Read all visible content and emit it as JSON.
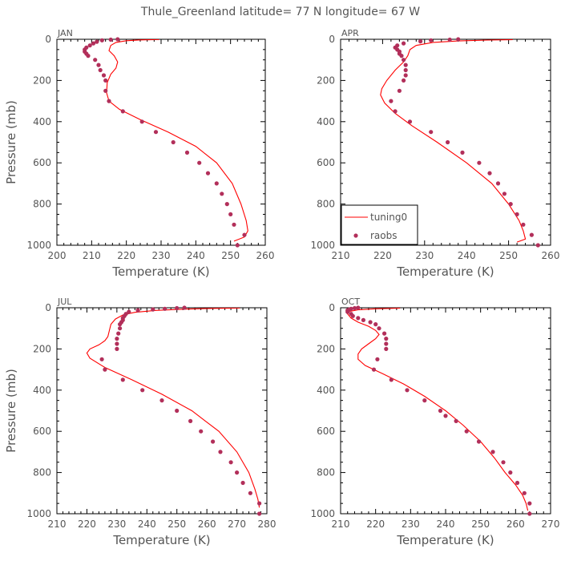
{
  "figure_title": "Thule_Greenland  latitude= 77 N longitude= 67 W",
  "legend": {
    "model": "tuning0",
    "obs": "raobs"
  },
  "colors": {
    "model": "#ff0000",
    "obs": "#b22f5a",
    "axis": "#000000",
    "text": "#555555"
  },
  "chart_data": [
    {
      "type": "line",
      "title": "JAN",
      "xlabel": "Temperature (K)",
      "ylabel": "Pressure (mb)",
      "xlim": [
        200,
        260
      ],
      "ylim": [
        0,
        1000
      ],
      "y_inverted": true,
      "xticks": [
        200,
        210,
        220,
        230,
        240,
        250,
        260
      ],
      "yticks": [
        0,
        200,
        400,
        600,
        800,
        1000
      ],
      "show_legend": false,
      "series": [
        {
          "name": "tuning0",
          "points": [
            [
              229.5,
              1
            ],
            [
              224,
              3
            ],
            [
              220,
              7
            ],
            [
              217,
              15
            ],
            [
              215.5,
              30
            ],
            [
              215,
              55
            ],
            [
              216.5,
              80
            ],
            [
              217.5,
              110
            ],
            [
              217,
              140
            ],
            [
              215.5,
              170
            ],
            [
              214.5,
              210
            ],
            [
              214.3,
              260
            ],
            [
              215,
              300
            ],
            [
              218,
              340
            ],
            [
              224,
              390
            ],
            [
              232,
              450
            ],
            [
              240,
              520
            ],
            [
              246,
              600
            ],
            [
              250.5,
              700
            ],
            [
              253,
              800
            ],
            [
              254.5,
              880
            ],
            [
              255,
              930
            ],
            [
              254,
              960
            ],
            [
              251,
              980
            ]
          ]
        },
        {
          "name": "raobs",
          "points": [
            [
              217.5,
              0
            ],
            [
              215.5,
              2
            ],
            [
              213,
              5
            ],
            [
              211.5,
              12
            ],
            [
              210.5,
              20
            ],
            [
              209.5,
              30
            ],
            [
              208.5,
              40
            ],
            [
              208,
              50
            ],
            [
              208,
              60
            ],
            [
              208.5,
              70
            ],
            [
              209,
              80
            ],
            [
              211,
              100
            ],
            [
              212,
              125
            ],
            [
              212.5,
              150
            ],
            [
              213.5,
              175
            ],
            [
              214,
              200
            ],
            [
              214,
              250
            ],
            [
              215,
              300
            ],
            [
              219,
              350
            ],
            [
              224.5,
              400
            ],
            [
              228.5,
              450
            ],
            [
              233.5,
              500
            ],
            [
              237.5,
              550
            ],
            [
              241,
              600
            ],
            [
              243.5,
              650
            ],
            [
              246,
              700
            ],
            [
              247.5,
              750
            ],
            [
              249,
              800
            ],
            [
              250,
              850
            ],
            [
              251,
              900
            ],
            [
              254,
              950
            ],
            [
              252,
              1000
            ]
          ]
        }
      ]
    },
    {
      "type": "line",
      "title": "APR",
      "xlabel": "Temperature (K)",
      "ylabel": "",
      "xlim": [
        210,
        260
      ],
      "ylim": [
        0,
        1000
      ],
      "y_inverted": true,
      "xticks": [
        210,
        220,
        230,
        240,
        250,
        260
      ],
      "yticks": [
        0,
        200,
        400,
        600,
        800,
        1000
      ],
      "show_legend": true,
      "series": [
        {
          "name": "tuning0",
          "points": [
            [
              251,
              2
            ],
            [
              245,
              4
            ],
            [
              238,
              8
            ],
            [
              232,
              15
            ],
            [
              228,
              30
            ],
            [
              226.5,
              50
            ],
            [
              226,
              80
            ],
            [
              225,
              110
            ],
            [
              223,
              150
            ],
            [
              221,
              200
            ],
            [
              219.8,
              240
            ],
            [
              219.5,
              270
            ],
            [
              220.5,
              310
            ],
            [
              223,
              360
            ],
            [
              227,
              420
            ],
            [
              233,
              500
            ],
            [
              240,
              600
            ],
            [
              246,
              700
            ],
            [
              250,
              800
            ],
            [
              252.5,
              880
            ],
            [
              253.5,
              930
            ],
            [
              254,
              970
            ],
            [
              252,
              985
            ]
          ]
        },
        {
          "name": "raobs",
          "points": [
            [
              238,
              0
            ],
            [
              236,
              2
            ],
            [
              231.5,
              5
            ],
            [
              229,
              10
            ],
            [
              225,
              20
            ],
            [
              223.5,
              30
            ],
            [
              223,
              40
            ],
            [
              223.5,
              50
            ],
            [
              224,
              60
            ],
            [
              224,
              70
            ],
            [
              224.5,
              80
            ],
            [
              225,
              100
            ],
            [
              225.5,
              125
            ],
            [
              225.5,
              150
            ],
            [
              225.5,
              175
            ],
            [
              225,
              200
            ],
            [
              224,
              250
            ],
            [
              222,
              300
            ],
            [
              223,
              350
            ],
            [
              226.5,
              400
            ],
            [
              231.5,
              450
            ],
            [
              235.5,
              500
            ],
            [
              239,
              550
            ],
            [
              243,
              600
            ],
            [
              245.5,
              650
            ],
            [
              247.5,
              700
            ],
            [
              249,
              750
            ],
            [
              250.5,
              800
            ],
            [
              252,
              850
            ],
            [
              253.5,
              900
            ],
            [
              255.5,
              950
            ],
            [
              257,
              1000
            ]
          ]
        }
      ]
    },
    {
      "type": "line",
      "title": "JUL",
      "xlabel": "Temperature (K)",
      "ylabel": "Pressure (mb)",
      "xlim": [
        210,
        280
      ],
      "ylim": [
        0,
        1000
      ],
      "y_inverted": true,
      "xticks": [
        210,
        220,
        230,
        240,
        250,
        260,
        270,
        280
      ],
      "yticks": [
        0,
        200,
        400,
        600,
        800,
        1000
      ],
      "show_legend": false,
      "series": [
        {
          "name": "tuning0",
          "points": [
            [
              271,
              1
            ],
            [
              262,
              3
            ],
            [
              252,
              7
            ],
            [
              243,
              13
            ],
            [
              236,
              22
            ],
            [
              232,
              35
            ],
            [
              229.5,
              55
            ],
            [
              228,
              80
            ],
            [
              227.5,
              110
            ],
            [
              227,
              140
            ],
            [
              226,
              160
            ],
            [
              224,
              180
            ],
            [
              221,
              200
            ],
            [
              220,
              220
            ],
            [
              221,
              245
            ],
            [
              226,
              290
            ],
            [
              235,
              350
            ],
            [
              245,
              420
            ],
            [
              255,
              500
            ],
            [
              264,
              600
            ],
            [
              270,
              700
            ],
            [
              274,
              800
            ],
            [
              276,
              880
            ],
            [
              277,
              930
            ],
            [
              277.5,
              970
            ]
          ]
        },
        {
          "name": "raobs",
          "points": [
            [
              252.5,
              0
            ],
            [
              250,
              2
            ],
            [
              246,
              5
            ],
            [
              242,
              8
            ],
            [
              237,
              12
            ],
            [
              234,
              20
            ],
            [
              233,
              30
            ],
            [
              232.5,
              40
            ],
            [
              232,
              50
            ],
            [
              232,
              60
            ],
            [
              231.5,
              70
            ],
            [
              231,
              80
            ],
            [
              231,
              100
            ],
            [
              230.5,
              125
            ],
            [
              230,
              150
            ],
            [
              230,
              175
            ],
            [
              230,
              200
            ],
            [
              225,
              250
            ],
            [
              226,
              300
            ],
            [
              232,
              350
            ],
            [
              238.5,
              400
            ],
            [
              245,
              450
            ],
            [
              250,
              500
            ],
            [
              254.5,
              550
            ],
            [
              258,
              600
            ],
            [
              262,
              650
            ],
            [
              264.5,
              700
            ],
            [
              268,
              750
            ],
            [
              270,
              800
            ],
            [
              272,
              850
            ],
            [
              274.5,
              900
            ],
            [
              277.5,
              950
            ],
            [
              277.5,
              1000
            ]
          ]
        }
      ]
    },
    {
      "type": "line",
      "title": "OCT",
      "xlabel": "Temperature (K)",
      "ylabel": "",
      "xlim": [
        210,
        270
      ],
      "ylim": [
        0,
        1000
      ],
      "y_inverted": true,
      "xticks": [
        210,
        220,
        230,
        240,
        250,
        260,
        270
      ],
      "yticks": [
        0,
        200,
        400,
        600,
        800,
        1000
      ],
      "show_legend": false,
      "series": [
        {
          "name": "tuning0",
          "points": [
            [
              227,
              2
            ],
            [
              220,
              5
            ],
            [
              215,
              10
            ],
            [
              212.5,
              18
            ],
            [
              212,
              30
            ],
            [
              213,
              50
            ],
            [
              215,
              70
            ],
            [
              218,
              90
            ],
            [
              220,
              110
            ],
            [
              221,
              130
            ],
            [
              220,
              150
            ],
            [
              218,
              175
            ],
            [
              216,
              200
            ],
            [
              215,
              225
            ],
            [
              215,
              250
            ],
            [
              217,
              280
            ],
            [
              222,
              320
            ],
            [
              228,
              370
            ],
            [
              234,
              430
            ],
            [
              240,
              500
            ],
            [
              245,
              570
            ],
            [
              250,
              650
            ],
            [
              254,
              730
            ],
            [
              257,
              800
            ],
            [
              260,
              860
            ],
            [
              262,
              910
            ],
            [
              263,
              950
            ],
            [
              263.5,
              985
            ]
          ]
        },
        {
          "name": "raobs",
          "points": [
            [
              215,
              0
            ],
            [
              214,
              2
            ],
            [
              213,
              5
            ],
            [
              212.5,
              8
            ],
            [
              212,
              12
            ],
            [
              212,
              20
            ],
            [
              213,
              30
            ],
            [
              213.5,
              40
            ],
            [
              215,
              50
            ],
            [
              216.5,
              60
            ],
            [
              218.5,
              70
            ],
            [
              220,
              80
            ],
            [
              221,
              100
            ],
            [
              222.5,
              125
            ],
            [
              223,
              150
            ],
            [
              223,
              175
            ],
            [
              223,
              200
            ],
            [
              220.5,
              250
            ],
            [
              219.5,
              300
            ],
            [
              224.5,
              350
            ],
            [
              229,
              400
            ],
            [
              234,
              450
            ],
            [
              238.5,
              500
            ],
            [
              240,
              525
            ],
            [
              243,
              550
            ],
            [
              246,
              600
            ],
            [
              249.5,
              650
            ],
            [
              253.5,
              700
            ],
            [
              256.5,
              750
            ],
            [
              258.5,
              800
            ],
            [
              260.5,
              850
            ],
            [
              262.5,
              900
            ],
            [
              264,
              950
            ],
            [
              264,
              1000
            ]
          ]
        }
      ]
    }
  ]
}
